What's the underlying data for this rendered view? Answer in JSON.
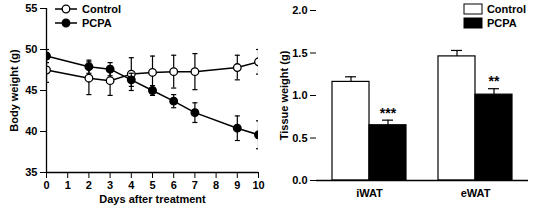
{
  "chart_data": [
    {
      "type": "line",
      "x_label": "Days after treatment",
      "y_label": "Body weight (g)",
      "x": [
        0,
        2,
        3,
        4,
        5,
        6,
        7,
        9,
        10
      ],
      "xlim": [
        0,
        10
      ],
      "xticks": [
        0,
        1,
        2,
        3,
        4,
        5,
        6,
        7,
        8,
        9,
        10
      ],
      "ylim": [
        35,
        55
      ],
      "yticks": [
        35,
        40,
        45,
        50,
        55
      ],
      "legend": "top-left",
      "series": [
        {
          "name": "Control",
          "color": "#000000",
          "marker": "circle_open",
          "line_style": "solid",
          "values": [
            47.5,
            46.5,
            46.2,
            47.0,
            47.2,
            47.3,
            47.3,
            47.8,
            48.5
          ],
          "errors": [
            1.5,
            2.0,
            1.8,
            2.0,
            2.0,
            2.0,
            2.2,
            1.5,
            1.5
          ]
        },
        {
          "name": "PCPA",
          "color": "#000000",
          "marker": "circle",
          "line_style": "solid",
          "values": [
            49.2,
            47.9,
            47.6,
            46.3,
            45.0,
            43.7,
            42.3,
            40.4,
            39.6
          ],
          "errors": [
            0.8,
            0.8,
            0.8,
            0.8,
            0.6,
            0.8,
            1.2,
            1.5,
            1.7
          ]
        }
      ]
    },
    {
      "type": "bar",
      "y_label": "Tissue weight (g)",
      "categories": [
        "iWAT",
        "eWAT"
      ],
      "ylim": [
        0,
        2
      ],
      "yticks": [
        {
          "value": 0,
          "label": "0.0"
        },
        {
          "value": 0.5,
          "label": "0.5"
        },
        {
          "value": 1,
          "label": "1.0"
        },
        {
          "value": 1.5,
          "label": "1.5"
        },
        {
          "value": 2,
          "label": "2.0"
        }
      ],
      "legend": "top-right",
      "series": [
        {
          "name": "Control",
          "color": "#ffffff",
          "values": [
            1.16,
            1.46
          ],
          "errors": [
            0.06,
            0.07
          ]
        },
        {
          "name": "PCPA",
          "color": "#000000",
          "values": [
            0.65,
            1.01
          ],
          "errors": [
            0.06,
            0.07
          ],
          "annotations": [
            "***",
            "**"
          ]
        }
      ]
    }
  ]
}
